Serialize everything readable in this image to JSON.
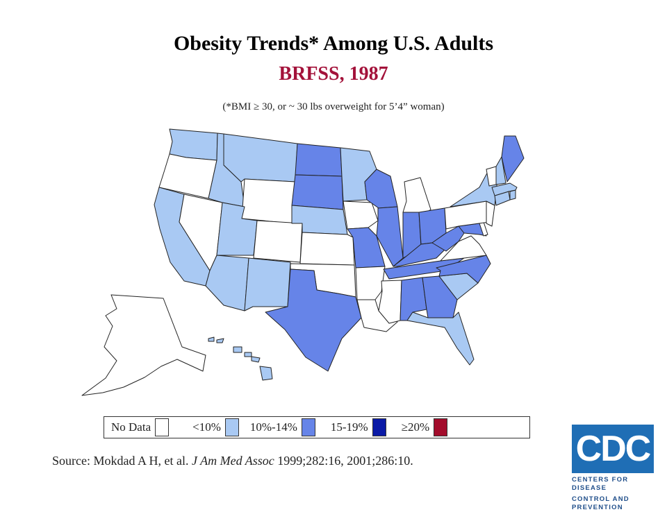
{
  "title": "Obesity Trends* Among U.S. Adults",
  "subtitle": "BRFSS, 1987",
  "footnote": "(*BMI ≥ 30, or ~ 30 lbs overweight for 5’4” woman)",
  "colors": {
    "no_data": "#ffffff",
    "lt10": "#a9c9f3",
    "10_14": "#6684e8",
    "15_19": "#0a1aa6",
    "ge20": "#a30d2c",
    "subtitle": "#a3123a",
    "border": "#222222"
  },
  "legend": [
    {
      "label": "No Data",
      "key": "no_data"
    },
    {
      "label": "<10%",
      "key": "lt10"
    },
    {
      "label": "10%-14%",
      "key": "10_14"
    },
    {
      "label": "15-19%",
      "key": "15_19"
    },
    {
      "label": "≥20%",
      "key": "ge20"
    }
  ],
  "states": {
    "WA": "lt10",
    "OR": "no_data",
    "CA": "lt10",
    "NV": "no_data",
    "ID": "lt10",
    "MT": "lt10",
    "WY": "no_data",
    "UT": "lt10",
    "AZ": "lt10",
    "CO": "no_data",
    "NM": "lt10",
    "ND": "10_14",
    "SD": "10_14",
    "NE": "lt10",
    "KS": "no_data",
    "OK": "no_data",
    "TX": "10_14",
    "MN": "lt10",
    "IA": "no_data",
    "MO": "10_14",
    "AR": "no_data",
    "LA": "no_data",
    "WI": "10_14",
    "IL": "10_14",
    "MI": "no_data",
    "IN": "10_14",
    "OH": "10_14",
    "KY": "10_14",
    "TN": "10_14",
    "MS": "no_data",
    "AL": "10_14",
    "GA": "10_14",
    "FL": "lt10",
    "SC": "lt10",
    "NC": "10_14",
    "VA": "no_data",
    "WV": "10_14",
    "MD": "10_14",
    "DE": "no_data",
    "PA": "no_data",
    "NJ": "no_data",
    "NY": "lt10",
    "CT": "lt10",
    "RI": "lt10",
    "MA": "lt10",
    "VT": "no_data",
    "NH": "lt10",
    "ME": "10_14",
    "AK": "no_data",
    "HI": "lt10"
  },
  "source": {
    "prefix": "Source: Mokdad A H, et al. ",
    "journal": "J Am Med Assoc",
    "suffix": " 1999;282:16,  2001;286:10."
  },
  "logo": {
    "text": "CDC",
    "tagline_1": "CENTERS FOR DISEASE",
    "tagline_2": "CONTROL AND PREVENTION"
  }
}
